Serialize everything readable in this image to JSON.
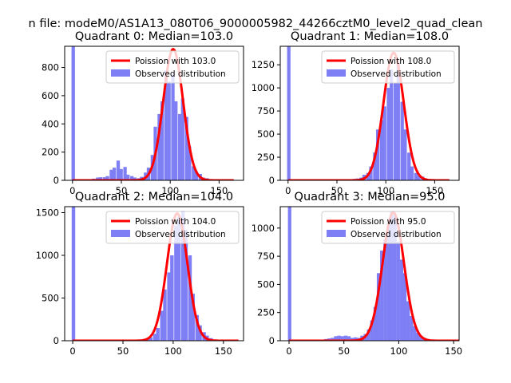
{
  "suptitle": "n file: modeM0/AS1A13_080T06_9000005982_44266cztM0_level2_quad_clean",
  "colors": {
    "hist": "#7f7ff5",
    "fit": "#ff0000",
    "axis": "#000000"
  },
  "chart_data": [
    {
      "type": "bar+line",
      "title": "Quadrant 0: Median=103.0",
      "xlim": [
        -8,
        175
      ],
      "ylim": [
        0,
        950
      ],
      "xticks": [
        0,
        50,
        100,
        150
      ],
      "yticks": [
        0,
        200,
        400,
        600,
        800
      ],
      "legend": {
        "placement": "top-right",
        "entries": [
          "Poission with 103.0",
          "Observed distribution"
        ]
      },
      "bin_width": 3.5,
      "histogram": {
        "bins_start": [
          -1,
          2,
          6,
          10,
          13,
          17,
          20,
          24,
          27,
          31,
          34,
          38,
          41,
          45,
          48,
          52,
          55,
          59,
          62,
          66,
          69,
          73,
          76,
          80,
          83,
          87,
          90,
          94,
          97,
          101,
          104,
          108,
          111,
          115,
          118,
          122,
          125,
          129,
          132,
          136,
          139,
          143,
          146,
          150,
          153,
          157,
          160,
          164
        ],
        "counts": [
          950,
          5,
          5,
          5,
          8,
          8,
          12,
          20,
          22,
          22,
          30,
          75,
          90,
          140,
          80,
          95,
          40,
          30,
          20,
          15,
          25,
          55,
          90,
          180,
          380,
          470,
          560,
          780,
          700,
          750,
          560,
          470,
          580,
          450,
          240,
          100,
          60,
          45,
          20,
          15,
          8,
          5,
          5,
          3,
          3,
          3,
          2,
          2
        ]
      },
      "fit": {
        "mean": 103.0,
        "peak": 930
      }
    },
    {
      "type": "bar+line",
      "title": "Quadrant 1: Median=108.0",
      "xlim": [
        -8,
        175
      ],
      "ylim": [
        0,
        1450
      ],
      "xticks": [
        0,
        50,
        100,
        150
      ],
      "yticks": [
        0,
        250,
        500,
        750,
        1000,
        1250
      ],
      "legend": {
        "placement": "top-right",
        "entries": [
          "Poission with 108.0",
          "Observed distribution"
        ]
      },
      "bin_width": 3.5,
      "histogram": {
        "bins_start": [
          -1,
          2,
          6,
          10,
          13,
          17,
          20,
          24,
          27,
          31,
          34,
          38,
          41,
          45,
          48,
          52,
          55,
          59,
          62,
          66,
          69,
          73,
          76,
          80,
          83,
          87,
          90,
          94,
          97,
          101,
          104,
          108,
          111,
          115,
          118,
          122,
          125,
          129,
          132,
          136,
          139,
          143,
          146,
          150,
          153,
          157,
          160,
          164
        ],
        "counts": [
          1450,
          5,
          3,
          3,
          3,
          3,
          3,
          5,
          5,
          5,
          5,
          5,
          5,
          5,
          5,
          5,
          5,
          5,
          10,
          15,
          20,
          30,
          60,
          80,
          150,
          300,
          550,
          650,
          800,
          1000,
          1200,
          1050,
          1270,
          850,
          550,
          300,
          150,
          80,
          50,
          40,
          20,
          10,
          5,
          3,
          3,
          2,
          2,
          2
        ]
      },
      "fit": {
        "mean": 108.0,
        "peak": 1380
      }
    },
    {
      "type": "bar+line",
      "title": "Quadrant 2: Median=104.0",
      "xlim": [
        -8,
        170
      ],
      "ylim": [
        0,
        1570
      ],
      "xticks": [
        0,
        50,
        100,
        150
      ],
      "yticks": [
        0,
        500,
        1000,
        1500
      ],
      "legend": {
        "placement": "top-right",
        "entries": [
          "Poission with 104.0",
          "Observed distribution"
        ]
      },
      "bin_width": 3.5,
      "histogram": {
        "bins_start": [
          -1,
          2,
          6,
          10,
          13,
          17,
          20,
          24,
          27,
          31,
          34,
          38,
          41,
          45,
          48,
          52,
          55,
          59,
          62,
          66,
          69,
          73,
          76,
          80,
          83,
          87,
          90,
          94,
          97,
          101,
          104,
          108,
          111,
          115,
          118,
          122,
          125,
          129,
          132,
          136,
          139,
          143,
          146,
          150,
          153,
          157,
          160,
          164
        ],
        "counts": [
          1570,
          3,
          3,
          3,
          3,
          3,
          3,
          3,
          3,
          3,
          3,
          3,
          3,
          3,
          3,
          3,
          3,
          3,
          3,
          5,
          10,
          20,
          40,
          80,
          150,
          350,
          600,
          800,
          1000,
          1350,
          1450,
          1520,
          1300,
          1000,
          550,
          300,
          180,
          100,
          60,
          30,
          15,
          8,
          4,
          3,
          2,
          2,
          2,
          2
        ]
      },
      "fit": {
        "mean": 104.0,
        "peak": 1490
      }
    },
    {
      "type": "bar+line",
      "title": "Quadrant 3: Median=95.0",
      "xlim": [
        -8,
        155
      ],
      "ylim": [
        0,
        1190
      ],
      "xticks": [
        0,
        50,
        100,
        150
      ],
      "yticks": [
        0,
        250,
        500,
        750,
        1000
      ],
      "legend": {
        "placement": "top-right",
        "entries": [
          "Poission with 95.0",
          "Observed distribution"
        ]
      },
      "bin_width": 3.1,
      "histogram": {
        "bins_start": [
          -1,
          2,
          5,
          8,
          11,
          14,
          17,
          20,
          23,
          26,
          29,
          32,
          35,
          38,
          41,
          44,
          47,
          50,
          53,
          56,
          59,
          62,
          65,
          68,
          71,
          74,
          77,
          80,
          83,
          86,
          89,
          92,
          95,
          98,
          101,
          104,
          107,
          110,
          113,
          116,
          119,
          122,
          125,
          128,
          131,
          134,
          137,
          140
        ],
        "counts": [
          1190,
          5,
          3,
          3,
          3,
          3,
          3,
          3,
          5,
          5,
          10,
          15,
          20,
          25,
          40,
          45,
          40,
          45,
          40,
          25,
          30,
          25,
          45,
          60,
          100,
          180,
          300,
          600,
          800,
          900,
          1050,
          1150,
          1120,
          880,
          720,
          600,
          350,
          220,
          130,
          70,
          40,
          25,
          15,
          8,
          5,
          3,
          2,
          2
        ]
      },
      "fit": {
        "mean": 95.0,
        "peak": 1140
      }
    }
  ]
}
